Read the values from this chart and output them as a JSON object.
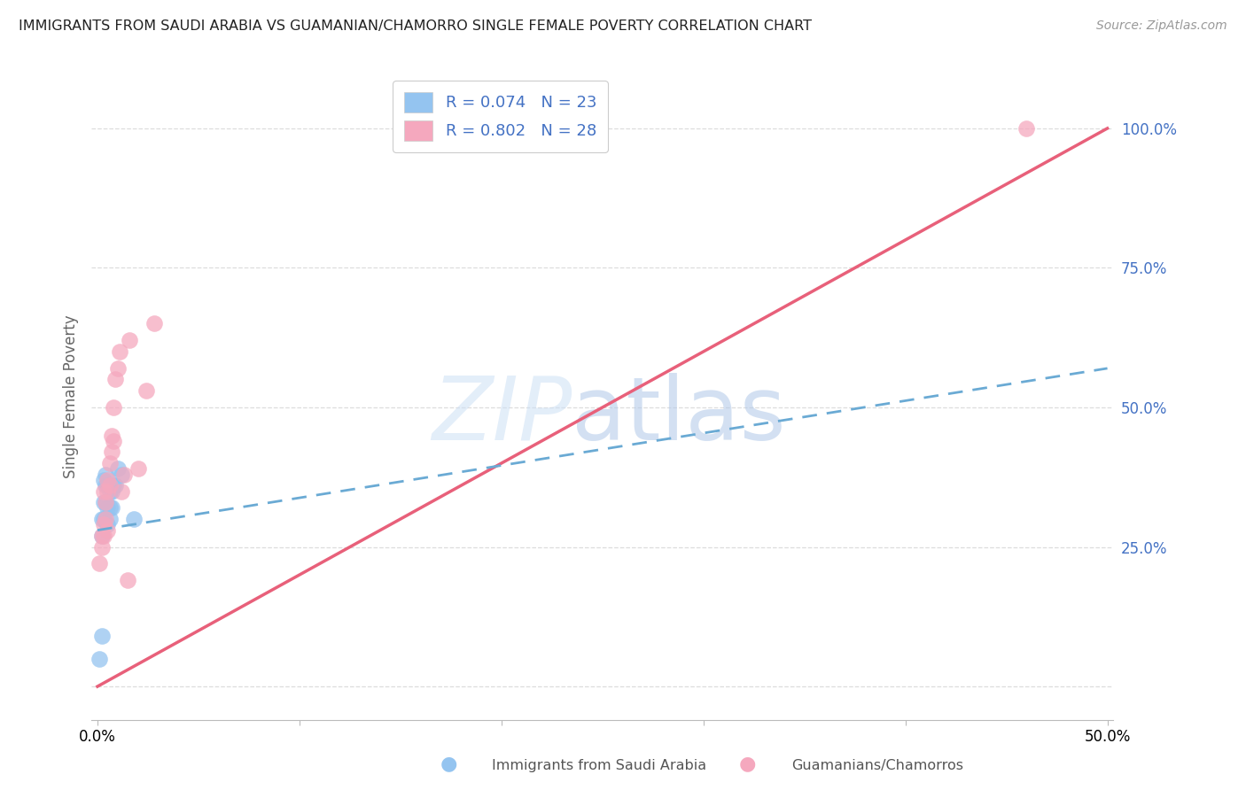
{
  "title": "IMMIGRANTS FROM SAUDI ARABIA VS GUAMANIAN/CHAMORRO SINGLE FEMALE POVERTY CORRELATION CHART",
  "source": "Source: ZipAtlas.com",
  "xlabel_blue": "Immigrants from Saudi Arabia",
  "xlabel_pink": "Guamanians/Chamorros",
  "ylabel": "Single Female Poverty",
  "legend_blue_R": "R = 0.074",
  "legend_blue_N": "N = 23",
  "legend_pink_R": "R = 0.802",
  "legend_pink_N": "N = 28",
  "xlim": [
    -0.003,
    0.503
  ],
  "ylim": [
    -0.06,
    1.1
  ],
  "yticks": [
    0.25,
    0.5,
    0.75,
    1.0
  ],
  "ytick_labels": [
    "25.0%",
    "50.0%",
    "75.0%",
    "100.0%"
  ],
  "xticks": [
    0.0,
    0.1,
    0.2,
    0.3,
    0.4,
    0.5
  ],
  "xtick_labels": [
    "0.0%",
    "",
    "",
    "",
    "",
    "50.0%"
  ],
  "blue_color": "#94c4f0",
  "pink_color": "#f5a8be",
  "blue_line_color": "#6aaad4",
  "pink_line_color": "#e8607a",
  "watermark_zip": "ZIP",
  "watermark_atlas": "atlas",
  "title_fontsize": 11.5,
  "axis_label_color": "#4472c4",
  "blue_scatter_x": [
    0.001,
    0.002,
    0.002,
    0.002,
    0.003,
    0.003,
    0.003,
    0.004,
    0.004,
    0.004,
    0.005,
    0.005,
    0.005,
    0.006,
    0.006,
    0.006,
    0.007,
    0.007,
    0.008,
    0.009,
    0.01,
    0.012,
    0.018
  ],
  "blue_scatter_y": [
    0.05,
    0.09,
    0.27,
    0.3,
    0.3,
    0.33,
    0.37,
    0.33,
    0.36,
    0.38,
    0.29,
    0.32,
    0.36,
    0.3,
    0.32,
    0.35,
    0.32,
    0.35,
    0.36,
    0.36,
    0.39,
    0.38,
    0.3
  ],
  "pink_scatter_x": [
    0.001,
    0.002,
    0.002,
    0.003,
    0.003,
    0.003,
    0.004,
    0.004,
    0.005,
    0.005,
    0.005,
    0.006,
    0.006,
    0.007,
    0.007,
    0.008,
    0.008,
    0.009,
    0.01,
    0.011,
    0.012,
    0.013,
    0.015,
    0.016,
    0.02,
    0.024,
    0.028,
    0.46
  ],
  "pink_scatter_y": [
    0.22,
    0.25,
    0.27,
    0.27,
    0.29,
    0.35,
    0.3,
    0.33,
    0.28,
    0.35,
    0.37,
    0.36,
    0.4,
    0.42,
    0.45,
    0.44,
    0.5,
    0.55,
    0.57,
    0.6,
    0.35,
    0.38,
    0.19,
    0.62,
    0.39,
    0.53,
    0.65,
    1.0
  ],
  "pink_line_x0": 0.0,
  "pink_line_y0": 0.0,
  "pink_line_x1": 0.5,
  "pink_line_y1": 1.0,
  "blue_line_x0": 0.0,
  "blue_line_y0": 0.28,
  "blue_line_x1": 0.5,
  "blue_line_y1": 0.57
}
